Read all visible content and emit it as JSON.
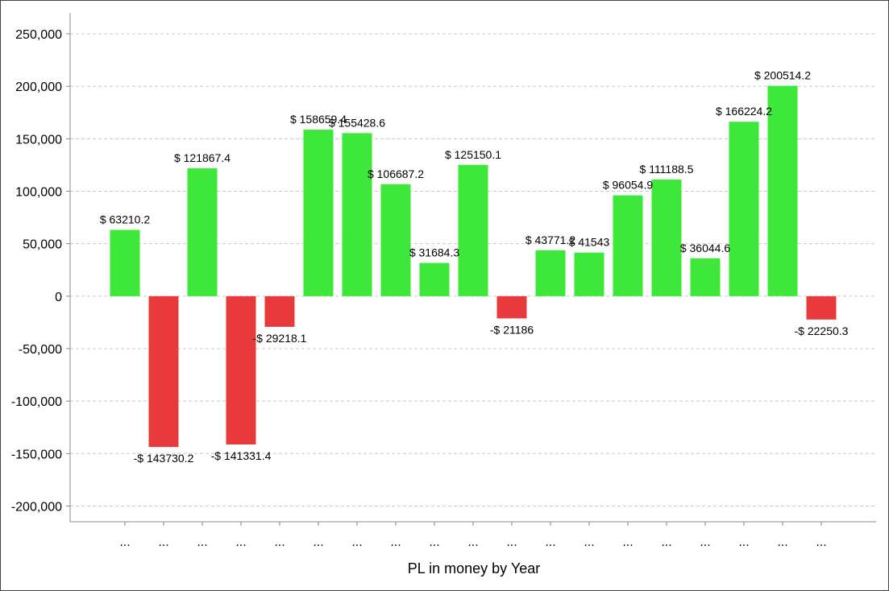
{
  "chart_data": {
    "type": "bar",
    "title": "",
    "xlabel": "PL in money by Year",
    "ylabel": "",
    "ylim": [
      -215000,
      270000
    ],
    "yticks": [
      250000,
      200000,
      150000,
      100000,
      50000,
      0,
      -50000,
      -100000,
      -150000,
      -200000
    ],
    "ytick_labels": [
      "250,000",
      "200,000",
      "150,000",
      "100,000",
      "50,000",
      "0",
      "-50,000",
      "-100,000",
      "-150,000",
      "-200,000"
    ],
    "grid": true,
    "categories": [
      "...",
      "...",
      "...",
      "...",
      "...",
      "...",
      "...",
      "...",
      "...",
      "...",
      "...",
      "...",
      "...",
      "...",
      "...",
      "...",
      "...",
      "...",
      "..."
    ],
    "values": [
      63210.2,
      -143730.2,
      121867.4,
      -141331.4,
      -29218.1,
      158659.4,
      155428.6,
      106687.2,
      31684.3,
      125150.1,
      -21186,
      43771.2,
      41543,
      96054.9,
      111188.5,
      36044.6,
      166224.2,
      200514.2,
      -22250.3
    ],
    "data_labels": [
      "$ 63210.2",
      "-$ 143730.2",
      "$ 121867.4",
      "-$ 141331.4",
      "-$ 29218.1",
      "$ 158659.4",
      "$ 155428.6",
      "$ 106687.2",
      "$ 31684.3",
      "$ 125150.1",
      "-$ 21186",
      "$ 43771.2",
      "$ 41543",
      "$ 96054.9",
      "$ 111188.5",
      "$ 36044.6",
      "$ 166224.2",
      "$ 200514.2",
      "-$ 22250.3"
    ],
    "colors": {
      "positive": "#3ee83a",
      "negative": "#e8393c"
    }
  }
}
